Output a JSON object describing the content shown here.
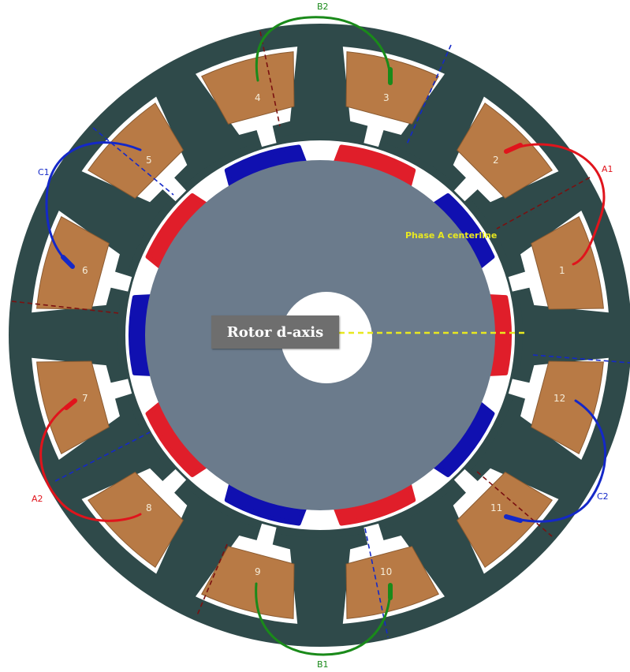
{
  "diagram": {
    "slot_numbers": [
      "1",
      "2",
      "3",
      "4",
      "5",
      "6",
      "7",
      "8",
      "9",
      "10",
      "11",
      "12"
    ],
    "coil_labels": {
      "A1": "A1",
      "A2": "A2",
      "B1": "B1",
      "B2": "B2",
      "C1": "C1",
      "C2": "C2"
    },
    "phase_a_centerline_label": "Phase A centerline",
    "rotor_daxis_label": "Rotor d-axis",
    "colors": {
      "stator_iron": "#2f4a4a",
      "coil_copper": "#b87a45",
      "rotor_core": "#6b7b8c",
      "magnet_north": "#e01e2a",
      "magnet_south": "#1010b0",
      "phase_a": "#e0141c",
      "phase_b": "#1a8a1a",
      "phase_c": "#1428c8",
      "centerline_label": "#e8e820",
      "d_axis_line": "#e8e820",
      "axis_dash_red": "#7a1010",
      "axis_dash_blue": "#1428c8"
    }
  }
}
